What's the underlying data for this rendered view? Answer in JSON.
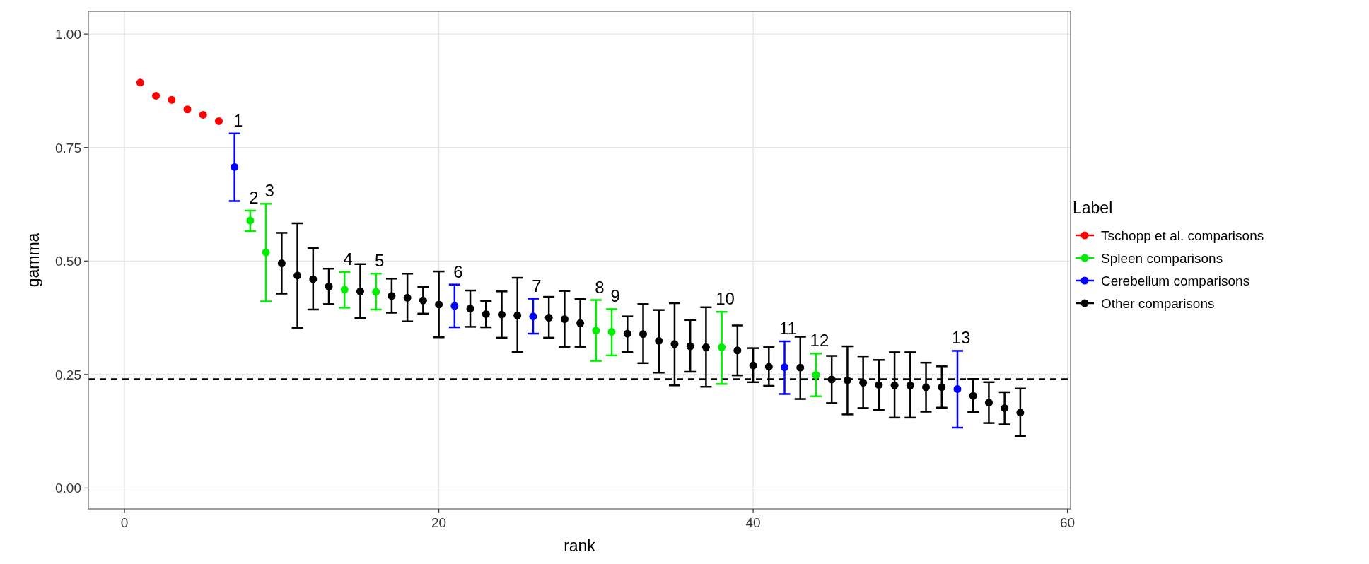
{
  "chart_data": {
    "type": "scatter",
    "xlabel": "rank",
    "ylabel": "gamma",
    "legend_title": "Label",
    "legend": "right",
    "grid": true,
    "marker": "circle",
    "xlim": [
      -2.3,
      60.2
    ],
    "xticks": [
      0,
      20,
      40,
      60
    ],
    "ylim": [
      -0.046,
      1.05
    ],
    "yticks": [
      {
        "value": 0,
        "label": "0.00"
      },
      {
        "value": 0.25,
        "label": "0.25"
      },
      {
        "value": 0.5,
        "label": "0.50"
      },
      {
        "value": 0.75,
        "label": "0.75"
      },
      {
        "value": 1,
        "label": "1.00"
      }
    ],
    "ref_lines": [
      {
        "axis": "y",
        "value": 0.24,
        "line_style": "dashed",
        "color": "#000000"
      }
    ],
    "annotations": [
      {
        "text": "1",
        "x": 7,
        "y": 0.781
      },
      {
        "text": "2",
        "x": 8,
        "y": 0.611
      },
      {
        "text": "3",
        "x": 9,
        "y": 0.626
      },
      {
        "text": "4",
        "x": 14,
        "y": 0.476
      },
      {
        "text": "5",
        "x": 16,
        "y": 0.472
      },
      {
        "text": "6",
        "x": 21,
        "y": 0.448
      },
      {
        "text": "7",
        "x": 26,
        "y": 0.417
      },
      {
        "text": "8",
        "x": 30,
        "y": 0.414
      },
      {
        "text": "9",
        "x": 31,
        "y": 0.394
      },
      {
        "text": "10",
        "x": 38,
        "y": 0.388
      },
      {
        "text": "11",
        "x": 42,
        "y": 0.323
      },
      {
        "text": "12",
        "x": 44,
        "y": 0.296
      },
      {
        "text": "13",
        "x": 53,
        "y": 0.302
      }
    ],
    "series": [
      {
        "name": "Tschopp et al. comparisons",
        "color": "#ff0000",
        "x": [
          1,
          2,
          3,
          4,
          5,
          6
        ],
        "values": [
          0.893,
          0.864,
          0.855,
          0.834,
          0.822,
          0.808
        ]
      },
      {
        "name": "Spleen comparisons",
        "color": "#00ee00",
        "x": [
          8,
          9,
          14,
          16,
          30,
          31,
          38,
          44
        ],
        "values": [
          0.589,
          0.519,
          0.437,
          0.432,
          0.347,
          0.344,
          0.31,
          0.249
        ],
        "errors": [
          [
            0.566,
            0.611
          ],
          [
            0.411,
            0.626
          ],
          [
            0.397,
            0.476
          ],
          [
            0.393,
            0.472
          ],
          [
            0.28,
            0.414
          ],
          [
            0.292,
            0.394
          ],
          [
            0.229,
            0.388
          ],
          [
            0.202,
            0.296
          ]
        ]
      },
      {
        "name": "Cerebellum comparisons",
        "color": "#0000ff",
        "x": [
          7,
          21,
          26,
          42,
          53
        ],
        "values": [
          0.707,
          0.401,
          0.378,
          0.266,
          0.218
        ],
        "errors": [
          [
            0.632,
            0.781
          ],
          [
            0.354,
            0.448
          ],
          [
            0.34,
            0.417
          ],
          [
            0.207,
            0.323
          ],
          [
            0.133,
            0.302
          ]
        ]
      },
      {
        "name": "Other comparisons",
        "color": "#000000",
        "x": [
          10,
          11,
          12,
          13,
          15,
          17,
          18,
          19,
          20,
          22,
          23,
          24,
          25,
          27,
          28,
          29,
          32,
          33,
          34,
          35,
          36,
          37,
          39,
          40,
          41,
          43,
          45,
          46,
          47,
          48,
          49,
          50,
          51,
          52,
          54,
          55,
          56,
          57
        ],
        "values": [
          0.495,
          0.468,
          0.46,
          0.444,
          0.433,
          0.423,
          0.419,
          0.413,
          0.404,
          0.395,
          0.383,
          0.382,
          0.38,
          0.375,
          0.372,
          0.363,
          0.34,
          0.339,
          0.324,
          0.317,
          0.312,
          0.31,
          0.303,
          0.27,
          0.267,
          0.265,
          0.239,
          0.237,
          0.232,
          0.227,
          0.226,
          0.226,
          0.222,
          0.222,
          0.203,
          0.188,
          0.176,
          0.166
        ],
        "errors": [
          [
            0.428,
            0.562
          ],
          [
            0.353,
            0.583
          ],
          [
            0.393,
            0.528
          ],
          [
            0.405,
            0.483
          ],
          [
            0.374,
            0.493
          ],
          [
            0.386,
            0.461
          ],
          [
            0.367,
            0.472
          ],
          [
            0.384,
            0.443
          ],
          [
            0.332,
            0.477
          ],
          [
            0.355,
            0.435
          ],
          [
            0.354,
            0.412
          ],
          [
            0.331,
            0.433
          ],
          [
            0.3,
            0.463
          ],
          [
            0.331,
            0.421
          ],
          [
            0.311,
            0.434
          ],
          [
            0.311,
            0.416
          ],
          [
            0.3,
            0.378
          ],
          [
            0.275,
            0.405
          ],
          [
            0.254,
            0.392
          ],
          [
            0.226,
            0.407
          ],
          [
            0.256,
            0.37
          ],
          [
            0.223,
            0.398
          ],
          [
            0.248,
            0.358
          ],
          [
            0.233,
            0.308
          ],
          [
            0.225,
            0.31
          ],
          [
            0.196,
            0.333
          ],
          [
            0.187,
            0.291
          ],
          [
            0.162,
            0.312
          ],
          [
            0.176,
            0.29
          ],
          [
            0.172,
            0.282
          ],
          [
            0.155,
            0.299
          ],
          [
            0.155,
            0.299
          ],
          [
            0.168,
            0.276
          ],
          [
            0.177,
            0.268
          ],
          [
            0.167,
            0.24
          ],
          [
            0.143,
            0.233
          ],
          [
            0.14,
            0.211
          ],
          [
            0.114,
            0.219
          ]
        ]
      }
    ]
  }
}
